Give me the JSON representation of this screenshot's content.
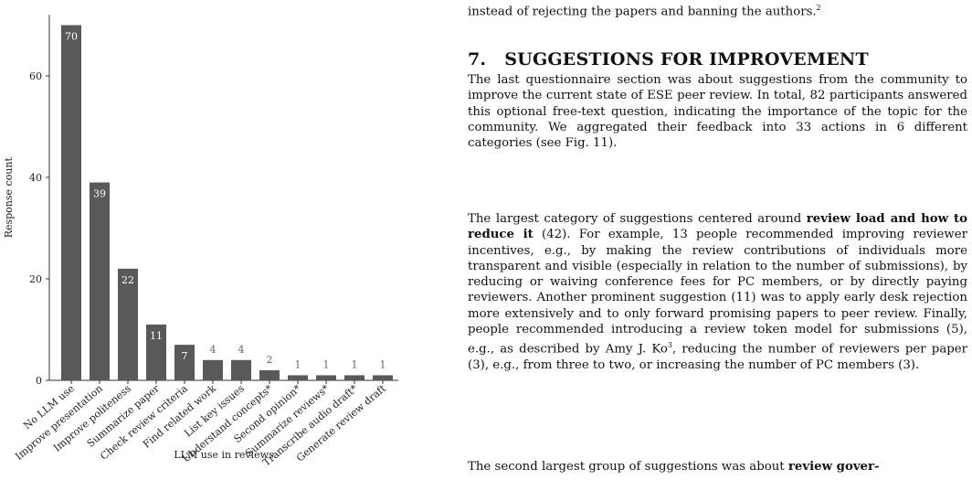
{
  "chart_data": {
    "type": "bar",
    "categories": [
      "No LLM use",
      "Improve presentation",
      "Improve politeness",
      "Summarize paper",
      "Check review criteria",
      "Find related work",
      "List key issues",
      "Understand concepts*",
      "Second opinion*",
      "Summarize reviews*",
      "Transcribe audio draft*",
      "Generate review draft"
    ],
    "values": [
      70,
      39,
      22,
      11,
      7,
      4,
      4,
      2,
      1,
      1,
      1,
      1
    ],
    "xlabel": "LLM use in reviews",
    "ylabel": "Response count",
    "ylim": [
      0,
      72
    ],
    "yticks": [
      0,
      20,
      40,
      60
    ],
    "bar_color": "#595959",
    "grid": false
  },
  "text": {
    "top_line": "instead of rejecting the papers and banning the authors.",
    "top_line_sup": "2",
    "section_number": "7.",
    "section_title": "SUGGESTIONS FOR IMPROVEMENT",
    "para1": "The last questionnaire section was about suggestions from the community to improve the current state of ESE peer review. In total, 82 participants answered this optional free-text question, indicating the importance of the topic for the community. We aggregated their feedback into 33 actions in 6 different categories (see Fig. 11).",
    "para2_start": "The largest category of suggestions centered around ",
    "para2_bold": "review load and how to reduce it",
    "para2_mid": " (42). For example, 13 people recommended improving reviewer incentives, e.g., by making the review contributions of individuals more transparent and visible (especially in relation to the number of submissions), by reducing or waiving conference fees for PC members, or by directly paying reviewers. Another prominent suggestion (11) was to apply early desk rejection more extensively and to only forward promising papers to peer review. Finally, people recommended introducing a review token model for submissions (5), e.g., as described by Amy J. Ko",
    "para2_sup": "3",
    "para2_end": ", reducing the number of reviewers per paper (3), e.g., from three to two, or increasing the number of PC members (3).",
    "para3_start": "The second largest group of suggestions was about ",
    "para3_bold": "review gover-"
  }
}
